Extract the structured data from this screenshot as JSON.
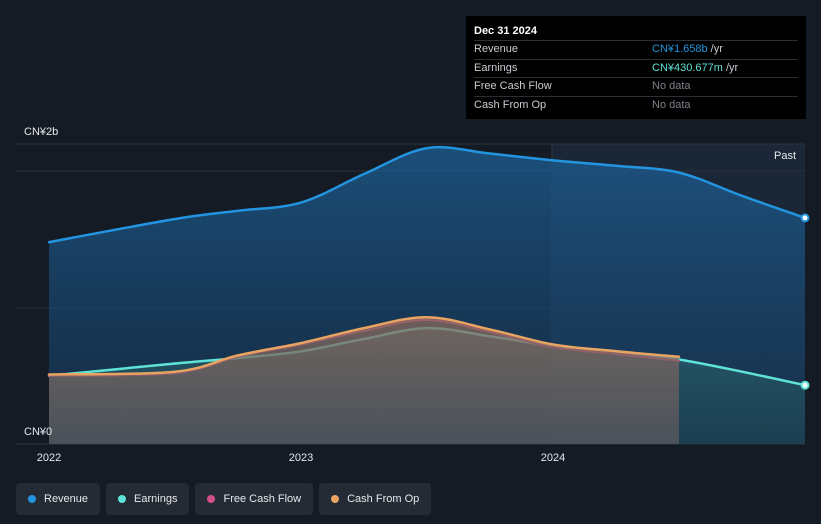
{
  "tooltip": {
    "date": "Dec 31 2024",
    "rows": [
      {
        "label": "Revenue",
        "value": "CN¥1.658b",
        "unit": "/yr"
      },
      {
        "label": "Earnings",
        "value": "CN¥430.677m",
        "unit": "/yr"
      },
      {
        "label": "Free Cash Flow",
        "value": "No data",
        "unit": ""
      },
      {
        "label": "Cash From Op",
        "value": "No data",
        "unit": ""
      }
    ]
  },
  "past_label": "Past",
  "legend": [
    {
      "label": "Revenue",
      "color": "#2394df"
    },
    {
      "label": "Earnings",
      "color": "#5fe3d6"
    },
    {
      "label": "Free Cash Flow",
      "color": "#d24f88"
    },
    {
      "label": "Cash From Op",
      "color": "#e8a460"
    }
  ],
  "chart_data": {
    "type": "area",
    "title": "",
    "xlabel": "",
    "ylabel": "",
    "x_ticks": [
      "2022",
      "2023",
      "2024"
    ],
    "y_ticks": [
      "CN¥0",
      "CN¥2b"
    ],
    "ylim": [
      0,
      2.2
    ],
    "xlim": [
      2022.0,
      2025.0
    ],
    "past_start": 2024.0,
    "series": [
      {
        "name": "Revenue",
        "color": "#2394df",
        "x": [
          2022.0,
          2022.5,
          2022.75,
          2023.0,
          2023.25,
          2023.5,
          2023.75,
          2024.0,
          2024.25,
          2024.5,
          2024.75,
          2025.0
        ],
        "values": [
          1.48,
          1.65,
          1.71,
          1.77,
          1.98,
          2.17,
          2.13,
          2.08,
          2.04,
          1.99,
          1.82,
          1.658
        ]
      },
      {
        "name": "Earnings",
        "color": "#5fe3d6",
        "x": [
          2022.0,
          2022.5,
          2022.75,
          2023.0,
          2023.25,
          2023.5,
          2023.75,
          2024.0,
          2024.25,
          2024.5,
          2024.75,
          2025.0
        ],
        "values": [
          0.5,
          0.59,
          0.63,
          0.68,
          0.77,
          0.85,
          0.79,
          0.72,
          0.68,
          0.62,
          0.53,
          0.431
        ]
      },
      {
        "name": "Free Cash Flow",
        "color": "#d24f88",
        "x": [
          2022.0,
          2022.5,
          2022.75,
          2023.0,
          2023.25,
          2023.5,
          2023.75,
          2024.0,
          2024.25,
          2024.5
        ],
        "values": [
          0.5,
          0.52,
          0.64,
          0.73,
          0.83,
          0.91,
          0.82,
          0.71,
          0.66,
          0.61
        ]
      },
      {
        "name": "Cash From Op",
        "color": "#e8a460",
        "x": [
          2022.0,
          2022.5,
          2022.75,
          2023.0,
          2023.25,
          2023.5,
          2023.75,
          2024.0,
          2024.25,
          2024.5
        ],
        "values": [
          0.51,
          0.53,
          0.65,
          0.74,
          0.85,
          0.93,
          0.84,
          0.73,
          0.68,
          0.64
        ]
      }
    ]
  }
}
